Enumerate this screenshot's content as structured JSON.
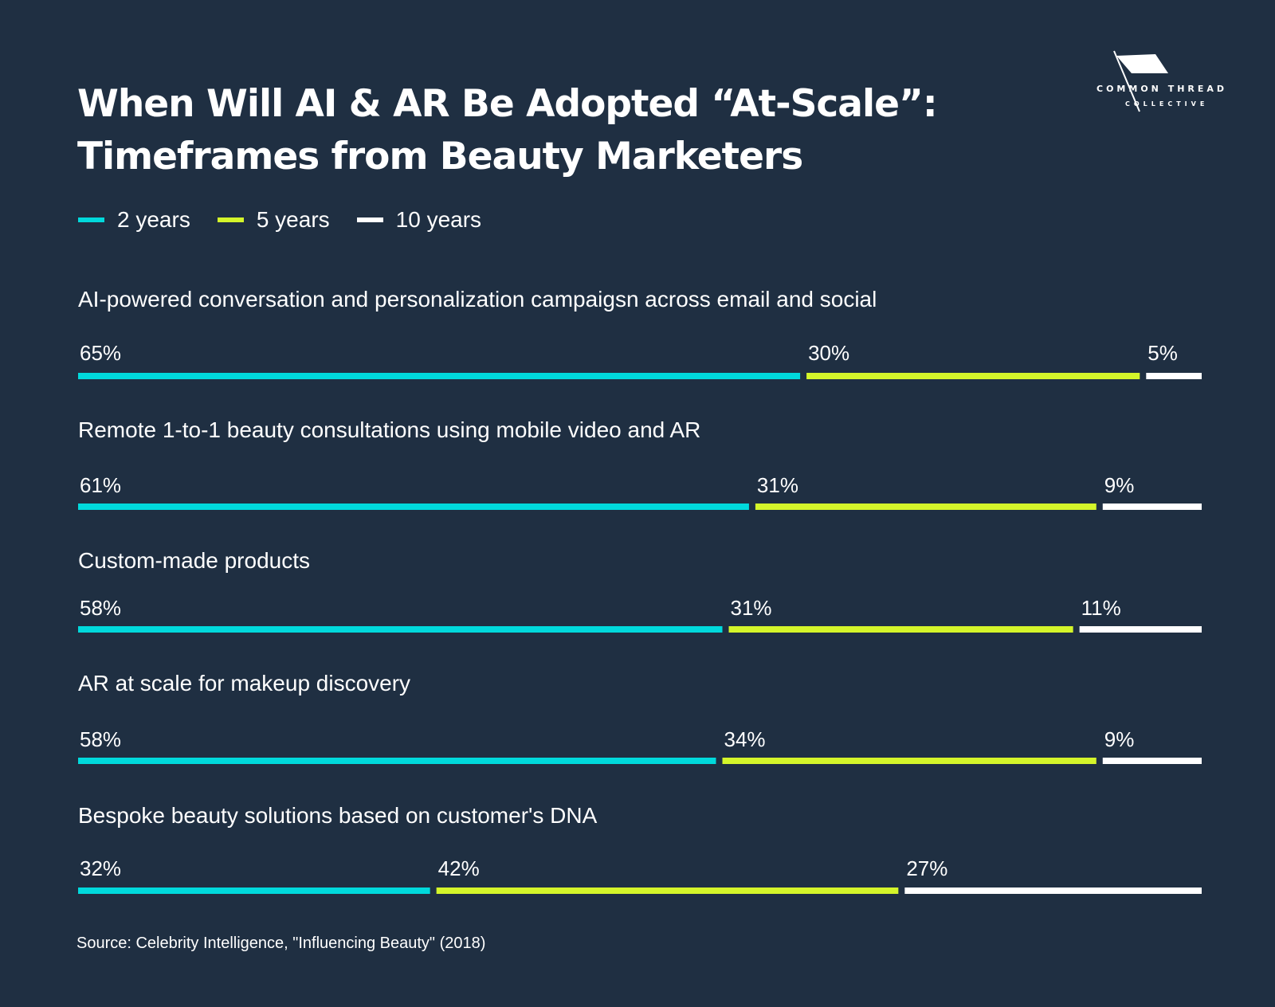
{
  "title_lines": [
    "When Will AI & AR Be Adopted “At-Scale”:",
    "Timeframes from Beauty Marketers"
  ],
  "logo": {
    "main": "COMMON THREAD",
    "sub": "COLLECTIVE"
  },
  "colors": {
    "background": "#1f2f42",
    "two_years": "#00d9dc",
    "five_years": "#d4f52a",
    "ten_years": "#ffffff"
  },
  "source": "Source: Celebrity Intelligence, \"Influencing Beauty\" (2018)",
  "chart_data": {
    "type": "bar",
    "orientation": "horizontal-stacked",
    "title": "When Will AI & AR Be Adopted “At-Scale”: Timeframes from Beauty Marketers",
    "legend": [
      "2 years",
      "5 years",
      "10 years"
    ],
    "legend_position": "top-left",
    "categories": [
      "AI-powered conversation and personalization campaigsn across email and social",
      "Remote 1-to-1 beauty consultations using mobile video and AR",
      "Custom-made products",
      "AR at scale for makeup discovery",
      "Bespoke beauty solutions based on customer's DNA"
    ],
    "series": [
      {
        "name": "2 years",
        "values": [
          65,
          61,
          58,
          58,
          32
        ],
        "labels": [
          "65%",
          "61%",
          "58%",
          "58%",
          "32%"
        ]
      },
      {
        "name": "5 years",
        "values": [
          30,
          31,
          31,
          34,
          42
        ],
        "labels": [
          "30%",
          "31%",
          "31%",
          "34%",
          "42%"
        ]
      },
      {
        "name": "10 years",
        "values": [
          5,
          9,
          11,
          9,
          27
        ],
        "labels": [
          "5%",
          "9%",
          "11%",
          "9%",
          "27%"
        ]
      }
    ],
    "unit": "%",
    "xlabel": "",
    "ylabel": "",
    "grid": false
  }
}
